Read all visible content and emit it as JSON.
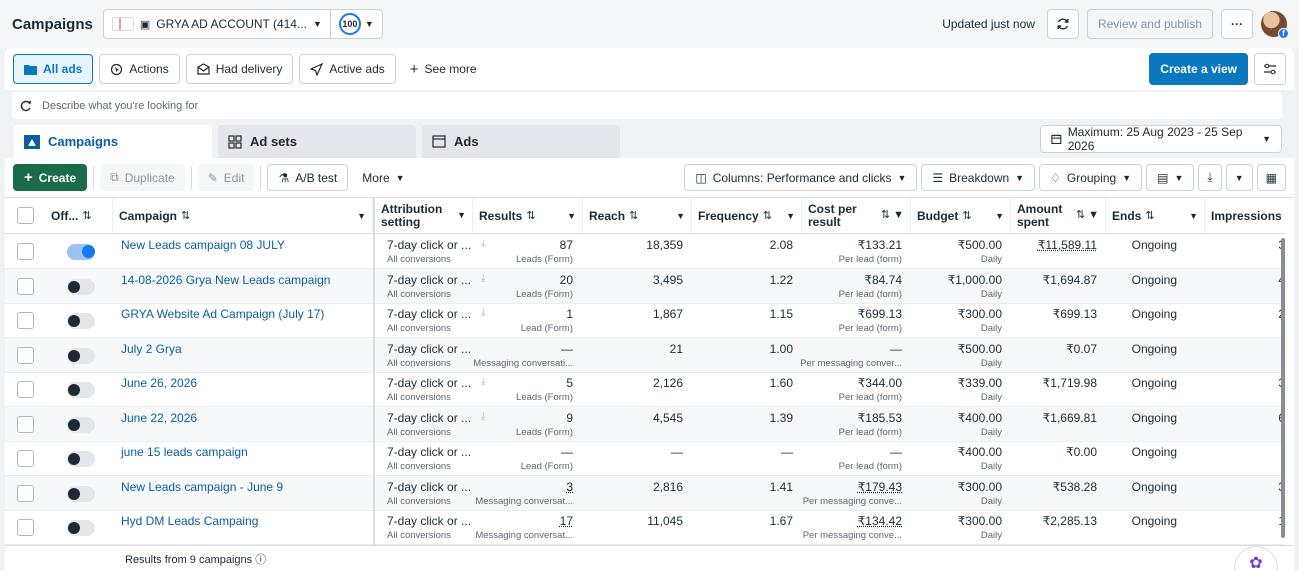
{
  "header": {
    "title": "Campaigns",
    "account_name": "GRYA AD ACCOUNT (414...",
    "score": "100",
    "updated_text": "Updated just now",
    "review_label": "Review and publish",
    "more_label": "···"
  },
  "filters": {
    "all_ads": "All ads",
    "actions": "Actions",
    "had_delivery": "Had delivery",
    "active_ads": "Active ads",
    "see_more": "See more",
    "create_view": "Create a view"
  },
  "search": {
    "placeholder": "Describe what you're looking for"
  },
  "tabs": {
    "campaigns": "Campaigns",
    "ad_sets": "Ad sets",
    "ads": "Ads"
  },
  "date_range": "Maximum: 25 Aug 2023 - 25 Sep 2026",
  "toolbar": {
    "create": "Create",
    "duplicate": "Duplicate",
    "edit": "Edit",
    "ab_test": "A/B test",
    "more": "More",
    "columns": "Columns: Performance and clicks",
    "breakdown": "Breakdown",
    "grouping": "Grouping"
  },
  "table": {
    "headers": {
      "off": "Off...",
      "campaign": "Campaign",
      "attribution_1": "Attribution",
      "attribution_2": "setting",
      "results": "Results",
      "reach": "Reach",
      "frequency": "Frequency",
      "cost_1": "Cost per",
      "cost_2": "result",
      "budget": "Budget",
      "amount_1": "Amount",
      "amount_2": "spent",
      "ends": "Ends",
      "impressions": "Impressions"
    },
    "rows": [
      {
        "name": "New Leads campaign 08 JULY",
        "on": true,
        "attr": "7-day click or ...",
        "attr_sub": "All conversions",
        "results": "87",
        "results_sub": "Leads (Form)",
        "reach": "18,359",
        "freq": "2.08",
        "cost": "₹133.21",
        "cost_sub": "Per lead (form)",
        "budget": "₹500.00",
        "budget_sub": "Daily",
        "spent": "₹11,589.11",
        "ends": "Ongoing",
        "imp": "3"
      },
      {
        "name": "14-08-2026 Grya New Leads campaign",
        "on": false,
        "attr": "7-day click or ...",
        "attr_sub": "All conversions",
        "results": "20",
        "results_sub": "Leads (Form)",
        "reach": "3,495",
        "freq": "1.22",
        "cost": "₹84.74",
        "cost_sub": "Per lead (form)",
        "budget": "₹1,000.00",
        "budget_sub": "Daily",
        "spent": "₹1,694.87",
        "ends": "Ongoing",
        "imp": "4"
      },
      {
        "name": "GRYA Website Ad Campaign (July 17)",
        "on": false,
        "attr": "7-day click or ...",
        "attr_sub": "All conversions",
        "results": "1",
        "results_sub": "Lead (Form)",
        "reach": "1,867",
        "freq": "1.15",
        "cost": "₹699.13",
        "cost_sub": "Per lead (form)",
        "budget": "₹300.00",
        "budget_sub": "Daily",
        "spent": "₹699.13",
        "ends": "Ongoing",
        "imp": "2"
      },
      {
        "name": "July 2 Grya",
        "on": false,
        "attr": "7-day click or ...",
        "attr_sub": "All conversions",
        "results": "—",
        "results_sub": "Messaging conversati...",
        "reach": "21",
        "freq": "1.00",
        "cost": "—",
        "cost_sub": "Per messaging conver...",
        "budget": "₹500.00",
        "budget_sub": "Daily",
        "spent": "₹0.07",
        "ends": "Ongoing",
        "imp": ""
      },
      {
        "name": "June 26, 2026",
        "on": false,
        "attr": "7-day click or ...",
        "attr_sub": "All conversions",
        "results": "5",
        "results_sub": "Leads (Form)",
        "reach": "2,126",
        "freq": "1.60",
        "cost": "₹344.00",
        "cost_sub": "Per lead (form)",
        "budget": "₹339.00",
        "budget_sub": "Daily",
        "spent": "₹1,719.98",
        "ends": "Ongoing",
        "imp": "3"
      },
      {
        "name": "June 22, 2026",
        "on": false,
        "attr": "7-day click or ...",
        "attr_sub": "All conversions",
        "results": "9",
        "results_sub": "Leads (Form)",
        "reach": "4,545",
        "freq": "1.39",
        "cost": "₹185.53",
        "cost_sub": "Per lead (form)",
        "budget": "₹400.00",
        "budget_sub": "Daily",
        "spent": "₹1,669.81",
        "ends": "Ongoing",
        "imp": "6"
      },
      {
        "name": "june 15 leads campaign",
        "on": false,
        "attr": "7-day click or ...",
        "attr_sub": "All conversions",
        "results": "—",
        "results_sub": "Lead (Form)",
        "reach": "—",
        "freq": "—",
        "cost": "—",
        "cost_sub": "Per lead (form)",
        "budget": "₹400.00",
        "budget_sub": "Daily",
        "spent": "₹0.00",
        "ends": "Ongoing",
        "imp": ""
      },
      {
        "name": "New Leads campaign - June 9",
        "on": false,
        "attr": "7-day click or ...",
        "attr_sub": "All conversions",
        "results": "3",
        "results_sub": "Messaging conversat...",
        "reach": "2,816",
        "freq": "1.41",
        "cost": "₹179.43",
        "cost_sub": "Per messaging conve...",
        "budget": "₹300.00",
        "budget_sub": "Daily",
        "spent": "₹538.28",
        "ends": "Ongoing",
        "imp": "3"
      },
      {
        "name": "Hyd DM Leads Campaing",
        "on": false,
        "attr": "7-day click or ...",
        "attr_sub": "All conversions",
        "results": "17",
        "results_sub": "Messaging conversat...",
        "reach": "11,045",
        "freq": "1.67",
        "cost": "₹134.42",
        "cost_sub": "Per messaging conve...",
        "budget": "₹300.00",
        "budget_sub": "Daily",
        "spent": "₹2,285.13",
        "ends": "Ongoing",
        "imp": "1"
      }
    ],
    "footer": "Results from 9 campaigns"
  }
}
